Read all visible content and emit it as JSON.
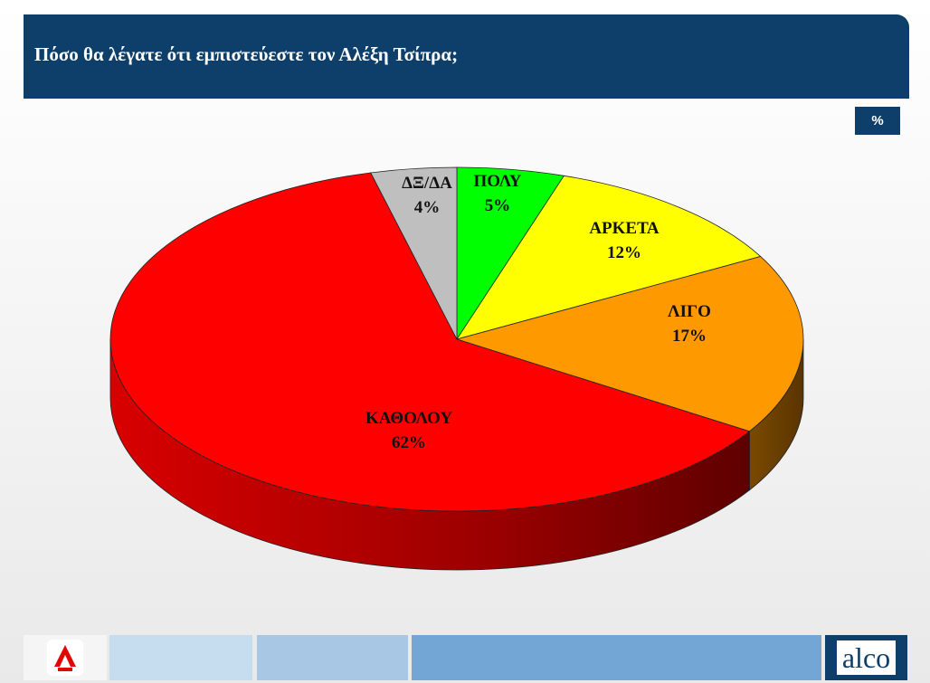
{
  "header": {
    "title": "Πόσο θα λέγατε ότι εμπιστεύεστε τον Αλέξη Τσίπρα;"
  },
  "unit_badge": "%",
  "footer": {
    "brand": "alco"
  },
  "colors": {
    "header_bg": "#0e3f6b"
  },
  "chart_data": {
    "type": "pie",
    "title": "Πόσο θα λέγατε ότι εμπιστεύεστε τον Αλέξη Τσίπρα;",
    "unit": "%",
    "categories": [
      "ΠΟΛΥ",
      "ΑΡΚΕΤΑ",
      "ΛΙΓΟ",
      "ΚΑΘΟΛΟΥ",
      "ΔΞ/ΔΑ"
    ],
    "values": [
      5,
      12,
      17,
      62,
      4
    ],
    "labels": [
      "5%",
      "12%",
      "17%",
      "62%",
      "4%"
    ],
    "colors": [
      "#00ff00",
      "#ffff00",
      "#ff9900",
      "#ff0000",
      "#bfbfbf"
    ],
    "legend": "none",
    "grid": false
  }
}
